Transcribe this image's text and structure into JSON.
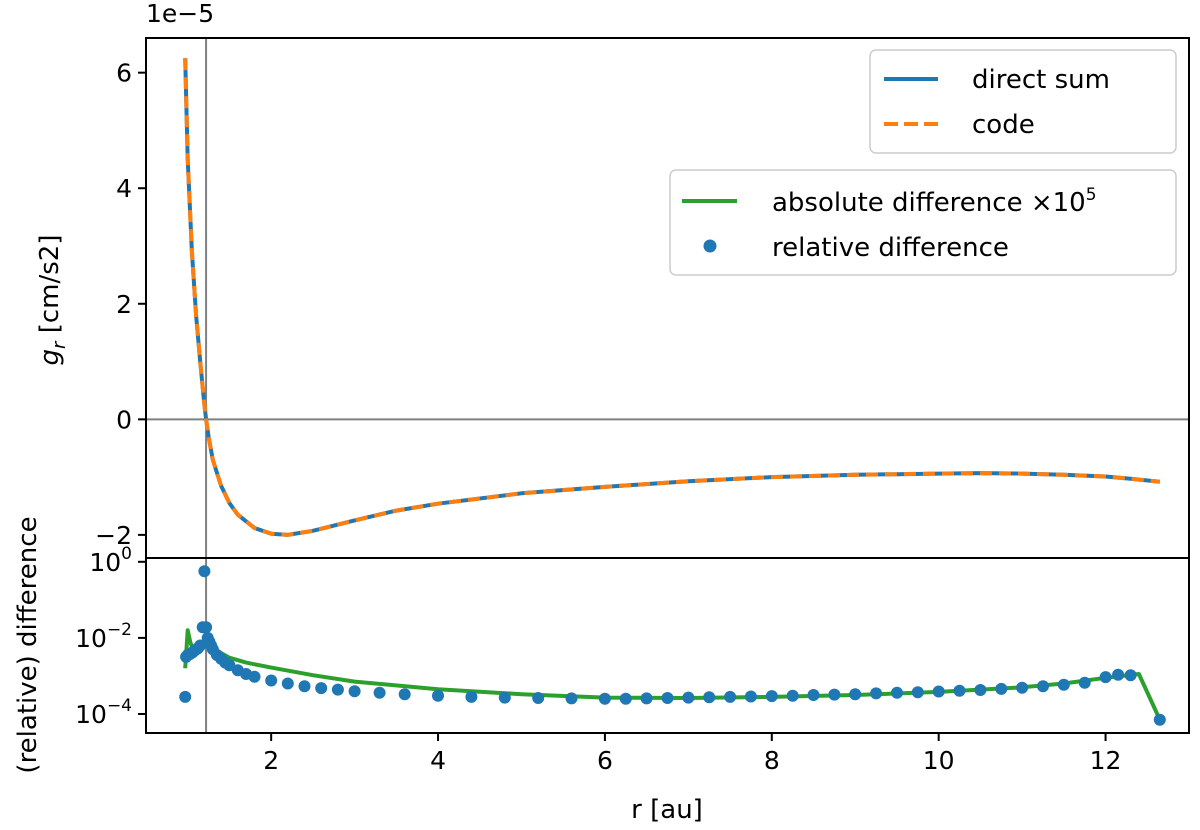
{
  "chart_data": [
    {
      "type": "line",
      "panel": "top",
      "offset_label": "1e−5",
      "ylabel": "gr [cm/s2]",
      "ylabel_main": "g",
      "ylabel_sub": "r",
      "ylabel_unit": " [cm/s2]",
      "xlim": [
        0.5,
        13.0
      ],
      "ylim": [
        -2.4,
        6.6
      ],
      "yscale": "linear",
      "ytick_values": [
        6,
        4,
        2,
        0,
        -2
      ],
      "ytick_labels": [
        "6",
        "4",
        "2",
        "0",
        "−2"
      ],
      "hline_y": 0,
      "vline_x": 1.22,
      "series": [
        {
          "name": "direct sum",
          "color": "#1f77b4",
          "style": "solid",
          "x": [
            0.97,
            1.0,
            1.05,
            1.1,
            1.15,
            1.2,
            1.22,
            1.25,
            1.3,
            1.4,
            1.5,
            1.6,
            1.8,
            2.0,
            2.2,
            2.5,
            3.0,
            3.5,
            4.0,
            5.0,
            6.0,
            7.0,
            8.0,
            9.0,
            10.0,
            10.5,
            11.0,
            11.5,
            12.0,
            12.3,
            12.65
          ],
          "y": [
            6.25,
            4.5,
            2.9,
            1.8,
            1.0,
            0.25,
            0.0,
            -0.3,
            -0.7,
            -1.15,
            -1.45,
            -1.65,
            -1.88,
            -1.98,
            -2.0,
            -1.93,
            -1.75,
            -1.58,
            -1.46,
            -1.28,
            -1.17,
            -1.07,
            -1.0,
            -0.96,
            -0.94,
            -0.93,
            -0.94,
            -0.96,
            -0.99,
            -1.03,
            -1.08
          ]
        },
        {
          "name": "code",
          "color": "#ff7f0e",
          "style": "dashed",
          "x": [
            0.97,
            1.0,
            1.05,
            1.1,
            1.15,
            1.2,
            1.22,
            1.25,
            1.3,
            1.4,
            1.5,
            1.6,
            1.8,
            2.0,
            2.2,
            2.5,
            3.0,
            3.5,
            4.0,
            5.0,
            6.0,
            7.0,
            8.0,
            9.0,
            10.0,
            10.5,
            11.0,
            11.5,
            12.0,
            12.3,
            12.65
          ],
          "y": [
            6.25,
            4.5,
            2.9,
            1.8,
            1.0,
            0.25,
            0.0,
            -0.3,
            -0.7,
            -1.15,
            -1.45,
            -1.65,
            -1.88,
            -1.98,
            -2.0,
            -1.93,
            -1.75,
            -1.58,
            -1.46,
            -1.28,
            -1.17,
            -1.07,
            -1.0,
            -0.96,
            -0.94,
            -0.93,
            -0.94,
            -0.96,
            -0.99,
            -1.03,
            -1.08
          ]
        }
      ],
      "legend_position": "top-right",
      "legend": [
        {
          "label": "direct sum",
          "color": "#1f77b4",
          "marker": "solid-line"
        },
        {
          "label": "code",
          "color": "#ff7f0e",
          "marker": "dashed-line"
        }
      ]
    },
    {
      "type": "line",
      "panel": "bottom",
      "xlabel": "r [au]",
      "ylabel": "(relative) difference",
      "xlim": [
        0.5,
        13.0
      ],
      "ylim_log10": [
        -4.5,
        0.1
      ],
      "yscale": "log",
      "ytick_values": [
        0,
        -2,
        -4
      ],
      "ytick_base": "10",
      "ytick_exponents": [
        "0",
        "−2",
        "−4"
      ],
      "xtick_values": [
        2,
        4,
        6,
        8,
        10,
        12
      ],
      "xtick_labels": [
        "2",
        "4",
        "6",
        "8",
        "10",
        "12"
      ],
      "vline_x": 1.22,
      "series": [
        {
          "name": "absolute difference ×105",
          "color": "#2ca02c",
          "style": "solid",
          "x": [
            0.97,
            1.0,
            1.03,
            1.06,
            1.1,
            1.15,
            1.2,
            1.22,
            1.25,
            1.3,
            1.4,
            1.5,
            1.7,
            2.0,
            2.5,
            3.0,
            4.0,
            5.0,
            6.0,
            7.0,
            8.0,
            9.0,
            10.0,
            11.0,
            11.5,
            12.0,
            12.4,
            12.65
          ],
          "log10y": [
            -2.8,
            -1.8,
            -2.1,
            -2.3,
            -2.3,
            -2.25,
            -2.1,
            -2.0,
            -2.1,
            -2.25,
            -2.4,
            -2.52,
            -2.65,
            -2.78,
            -2.98,
            -3.15,
            -3.35,
            -3.48,
            -3.57,
            -3.58,
            -3.55,
            -3.5,
            -3.42,
            -3.3,
            -3.2,
            -3.05,
            -2.95,
            -4.15
          ]
        },
        {
          "name": "relative difference",
          "color": "#1f77b4",
          "style": "markers",
          "points": [
            [
              0.97,
              -3.55
            ],
            [
              0.98,
              -2.5
            ],
            [
              1.0,
              -2.45
            ],
            [
              1.03,
              -2.42
            ],
            [
              1.06,
              -2.38
            ],
            [
              1.09,
              -2.32
            ],
            [
              1.12,
              -2.28
            ],
            [
              1.15,
              -2.2
            ],
            [
              1.18,
              -1.72
            ],
            [
              1.2,
              -0.25
            ],
            [
              1.22,
              -1.72
            ],
            [
              1.24,
              -2.0
            ],
            [
              1.26,
              -2.1
            ],
            [
              1.28,
              -2.2
            ],
            [
              1.3,
              -2.3
            ],
            [
              1.35,
              -2.45
            ],
            [
              1.4,
              -2.55
            ],
            [
              1.45,
              -2.65
            ],
            [
              1.5,
              -2.72
            ],
            [
              1.6,
              -2.85
            ],
            [
              1.7,
              -2.95
            ],
            [
              1.8,
              -3.02
            ],
            [
              2.0,
              -3.12
            ],
            [
              2.2,
              -3.2
            ],
            [
              2.4,
              -3.27
            ],
            [
              2.6,
              -3.32
            ],
            [
              2.8,
              -3.36
            ],
            [
              3.0,
              -3.4
            ],
            [
              3.3,
              -3.44
            ],
            [
              3.6,
              -3.48
            ],
            [
              4.0,
              -3.52
            ],
            [
              4.4,
              -3.55
            ],
            [
              4.8,
              -3.57
            ],
            [
              5.2,
              -3.58
            ],
            [
              5.6,
              -3.59
            ],
            [
              6.0,
              -3.6
            ],
            [
              6.25,
              -3.6
            ],
            [
              6.5,
              -3.59
            ],
            [
              6.75,
              -3.58
            ],
            [
              7.0,
              -3.57
            ],
            [
              7.25,
              -3.56
            ],
            [
              7.5,
              -3.55
            ],
            [
              7.75,
              -3.54
            ],
            [
              8.0,
              -3.53
            ],
            [
              8.25,
              -3.52
            ],
            [
              8.5,
              -3.5
            ],
            [
              8.75,
              -3.49
            ],
            [
              9.0,
              -3.48
            ],
            [
              9.25,
              -3.46
            ],
            [
              9.5,
              -3.44
            ],
            [
              9.75,
              -3.43
            ],
            [
              10.0,
              -3.41
            ],
            [
              10.25,
              -3.39
            ],
            [
              10.5,
              -3.37
            ],
            [
              10.75,
              -3.34
            ],
            [
              11.0,
              -3.31
            ],
            [
              11.25,
              -3.27
            ],
            [
              11.5,
              -3.23
            ],
            [
              11.75,
              -3.18
            ],
            [
              12.0,
              -3.03
            ],
            [
              12.15,
              -2.97
            ],
            [
              12.3,
              -2.98
            ],
            [
              12.65,
              -4.15
            ]
          ]
        }
      ],
      "legend_position": "upper-right-of-top-panel",
      "legend": [
        {
          "label": "absolute difference ×10",
          "sup": "5",
          "color": "#2ca02c",
          "marker": "solid-line"
        },
        {
          "label": "relative difference",
          "color": "#1f77b4",
          "marker": "dot"
        }
      ]
    }
  ]
}
